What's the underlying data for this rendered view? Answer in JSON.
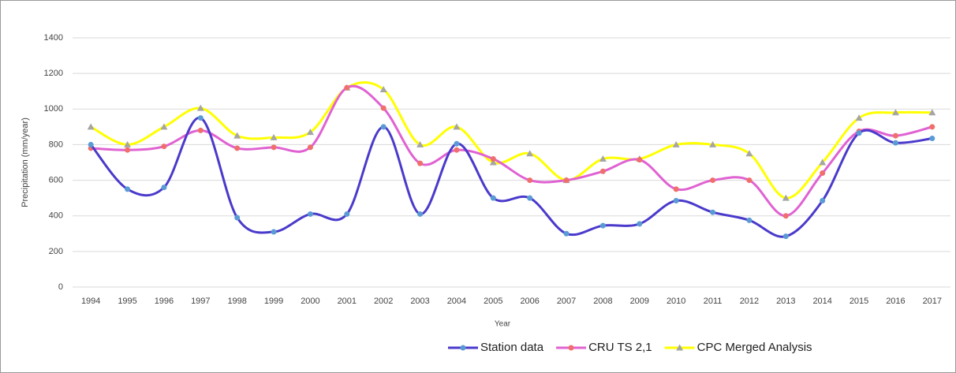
{
  "chart_data": {
    "type": "line",
    "smooth": true,
    "x_label": "Year",
    "y_label": "Precipitation (mm/year)",
    "categories": [
      "1994",
      "1995",
      "1996",
      "1997",
      "1998",
      "1999",
      "2000",
      "2001",
      "2002",
      "2003",
      "2004",
      "2005",
      "2006",
      "2007",
      "2008",
      "2009",
      "2010",
      "2011",
      "2012",
      "2013",
      "2014",
      "2015",
      "2016",
      "2017"
    ],
    "series": [
      {
        "name": "Station data",
        "color": "#4a3acb",
        "marker_color": "#5b9bd5",
        "marker": "circle",
        "values": [
          800,
          550,
          560,
          950,
          390,
          310,
          410,
          410,
          900,
          410,
          805,
          500,
          500,
          300,
          345,
          355,
          485,
          420,
          375,
          285,
          485,
          865,
          810,
          835
        ]
      },
      {
        "name": "CRU TS 2,1",
        "color": "#e062d2",
        "marker_color": "#ef6f6c",
        "marker": "circle",
        "values": [
          780,
          770,
          790,
          880,
          780,
          785,
          785,
          1120,
          1005,
          695,
          770,
          720,
          600,
          600,
          650,
          715,
          550,
          600,
          600,
          400,
          640,
          875,
          850,
          900
        ]
      },
      {
        "name": "CPC Merged Analysis",
        "color": "#ffff00",
        "marker_color": "#a5a5a5",
        "marker": "triangle",
        "values": [
          900,
          800,
          900,
          1005,
          850,
          840,
          870,
          1120,
          1110,
          800,
          900,
          700,
          750,
          600,
          720,
          720,
          800,
          800,
          750,
          500,
          700,
          950,
          980,
          980
        ]
      }
    ],
    "ylim": [
      0,
      1400
    ],
    "yticks": [
      0,
      200,
      400,
      600,
      800,
      1000,
      1200,
      1400
    ],
    "grid": true,
    "legend": "bottom"
  }
}
